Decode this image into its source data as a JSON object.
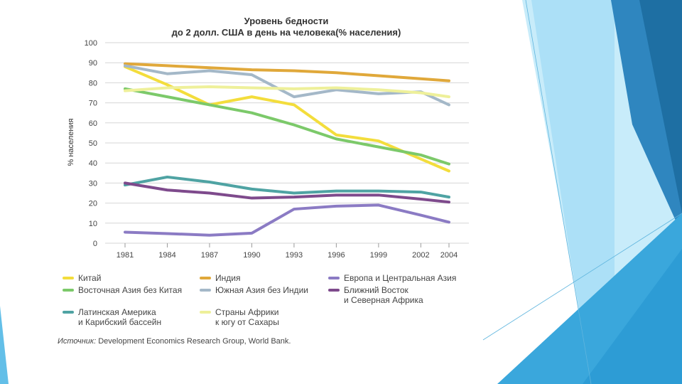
{
  "slide": {
    "decor_colors": [
      "#1e6fa3",
      "#2f86bf",
      "#63bfe8",
      "#9fdcf5",
      "#c8ecfa",
      "#3aa7dc"
    ]
  },
  "chart_data": {
    "type": "line",
    "title_lines": [
      "Уровень бедности",
      "до 2 долл. США в день на человека(% населения)"
    ],
    "ylabel": "% населения",
    "xlabel": "",
    "ylim": [
      0,
      100
    ],
    "yticks": [
      0,
      10,
      20,
      30,
      40,
      50,
      60,
      70,
      80,
      90,
      100
    ],
    "x": [
      1981,
      1984,
      1987,
      1990,
      1993,
      1996,
      1999,
      2002,
      2004
    ],
    "series": [
      {
        "name": "Китай",
        "color": "#f3dd3c",
        "values": [
          88,
          79,
          69,
          73,
          69,
          54,
          51,
          42,
          36
        ]
      },
      {
        "name": "Восточная Азия без Китая",
        "color": "#7cc96a",
        "values": [
          77,
          73,
          69,
          65,
          59,
          52,
          48,
          44,
          39.5
        ]
      },
      {
        "name": "Латинская Америка\nи Карибский бассейн",
        "color": "#4fa3a3",
        "values": [
          29,
          33,
          30.5,
          27,
          25,
          26,
          26,
          25.5,
          23
        ]
      },
      {
        "name": "Индия",
        "color": "#e0a83a",
        "values": [
          89.5,
          88.5,
          87.5,
          86.5,
          86,
          85,
          83.5,
          82,
          81
        ]
      },
      {
        "name": "Южная Азия без Индии",
        "color": "#a4b8c8",
        "values": [
          88.5,
          84.5,
          86,
          84,
          73,
          76.5,
          74.5,
          75.5,
          69
        ]
      },
      {
        "name": "Страны Африки\nк югу от Сахары",
        "color": "#eef09a",
        "values": [
          76,
          77.5,
          78,
          77.5,
          77,
          77.5,
          76.5,
          75,
          73
        ]
      },
      {
        "name": "Европа и Центральная Азия",
        "color": "#8b7bc4",
        "values": [
          5.5,
          4.8,
          4,
          5,
          17,
          18.5,
          19,
          14,
          10.5
        ]
      },
      {
        "name": "Ближний Восток\nи Северная Африка",
        "color": "#7e4a8c",
        "values": [
          30,
          26.5,
          25,
          22.5,
          23,
          24,
          24,
          22,
          20.5
        ]
      }
    ],
    "legend_order": [
      0,
      3,
      6,
      1,
      4,
      7,
      2,
      5
    ],
    "source_prefix": "Источник:",
    "source_rest": " Development Economics Research Group, World Bank."
  }
}
